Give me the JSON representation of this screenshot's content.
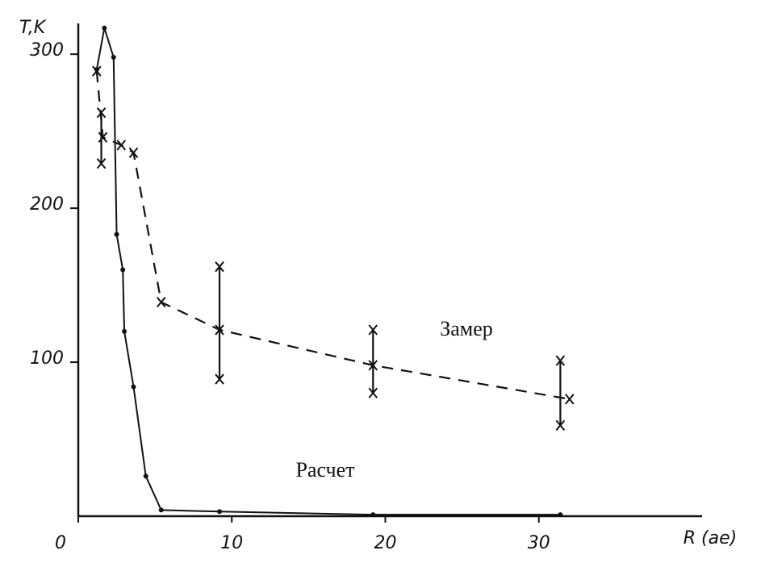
{
  "chart_data": {
    "type": "line",
    "xlabel": "R (ae)",
    "ylabel": "T,K",
    "xlim": [
      0,
      40
    ],
    "ylim": [
      0,
      320
    ],
    "xticks": [
      0,
      10,
      20,
      30
    ],
    "yticks": [
      100,
      200,
      300
    ],
    "series": [
      {
        "name": "Замер",
        "color": "#111111",
        "dashed": true,
        "marker": "x",
        "x": [
          1.2,
          1.6,
          2.8,
          3.6,
          5.4,
          9.2,
          19.2,
          32
        ],
        "values": [
          289,
          246,
          241,
          236,
          139,
          121,
          98,
          76
        ]
      },
      {
        "name": "Расчет",
        "color": "#111111",
        "dashed": false,
        "marker": "dot",
        "x": [
          1.2,
          1.7,
          2.3,
          2.5,
          2.9,
          3.0,
          3.6,
          4.4,
          5.4,
          9.2,
          19.2,
          31.4
        ],
        "values": [
          290,
          317,
          298,
          183,
          160,
          120,
          84,
          26,
          4,
          3,
          1,
          1
        ]
      }
    ],
    "error_bars": [
      {
        "x": 1.5,
        "low": 229,
        "high": 262
      },
      {
        "x": 9.2,
        "low": 89,
        "high": 162
      },
      {
        "x": 19.2,
        "low": 80,
        "high": 121
      },
      {
        "x": 31.4,
        "low": 59,
        "high": 101
      }
    ]
  }
}
